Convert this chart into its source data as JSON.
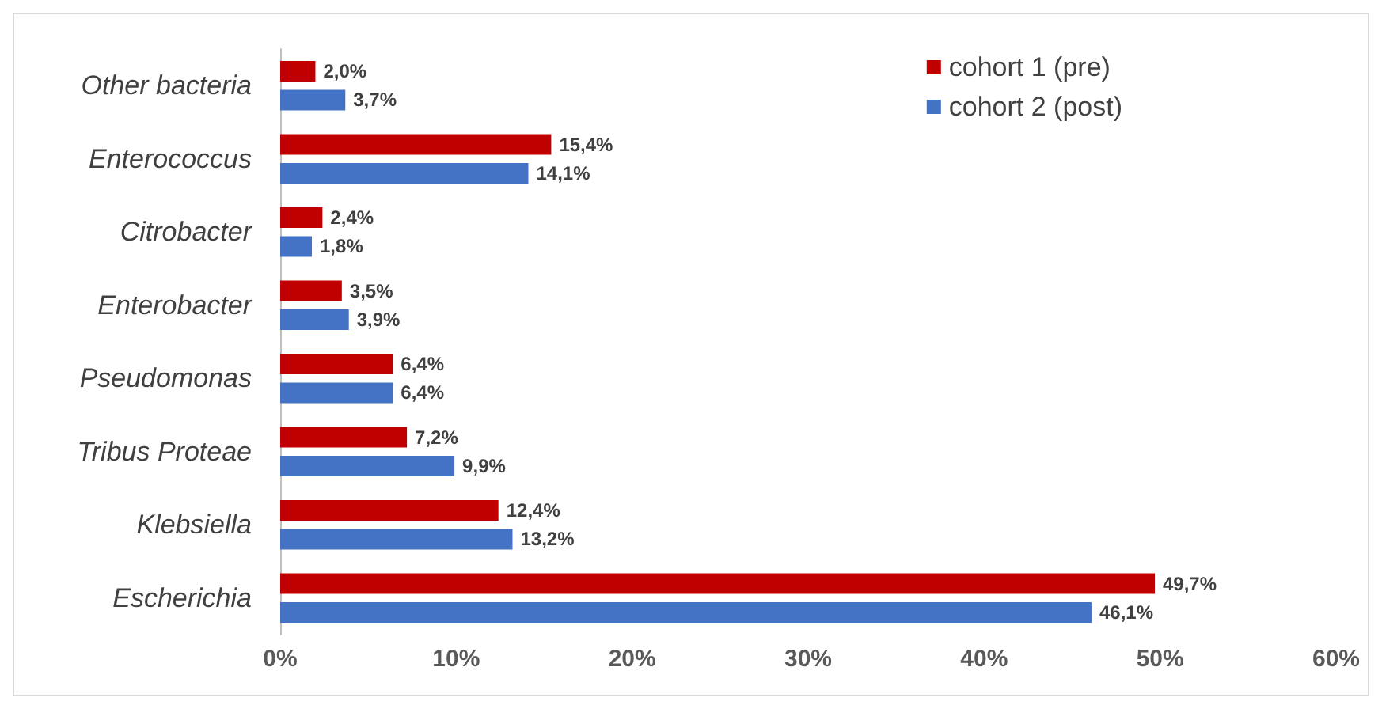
{
  "chart_data": {
    "type": "bar",
    "orientation": "horizontal",
    "categories": [
      "Other bacteria",
      "Enterococcus",
      "Citrobacter",
      "Enterobacter",
      "Pseudomonas",
      "Tribus Proteae",
      "Klebsiella",
      "Escherichia"
    ],
    "series": [
      {
        "name": "cohort 1 (pre)",
        "color": "#c00000",
        "values": [
          2.0,
          15.4,
          2.4,
          3.5,
          6.4,
          7.2,
          12.4,
          49.7
        ],
        "value_labels": [
          "2,0%",
          "15,4%",
          "2,4%",
          "3,5%",
          "6,4%",
          "7,2%",
          "12,4%",
          "49,7%"
        ]
      },
      {
        "name": "cohort 2 (post)",
        "color": "#4472c4",
        "values": [
          3.7,
          14.1,
          1.8,
          3.9,
          6.4,
          9.9,
          13.2,
          46.1
        ],
        "value_labels": [
          "3,7%",
          "14,1%",
          "1,8%",
          "3,9%",
          "6,4%",
          "9,9%",
          "13,2%",
          "46,1%"
        ]
      }
    ],
    "xlim": [
      0,
      60
    ],
    "xticks": [
      {
        "value": 0,
        "label": "0%"
      },
      {
        "value": 10,
        "label": "10%"
      },
      {
        "value": 20,
        "label": "20%"
      },
      {
        "value": 30,
        "label": "30%"
      },
      {
        "value": 40,
        "label": "40%"
      },
      {
        "value": 50,
        "label": "50%"
      },
      {
        "value": 60,
        "label": "60%"
      }
    ],
    "grid": false,
    "legend": "top right"
  }
}
